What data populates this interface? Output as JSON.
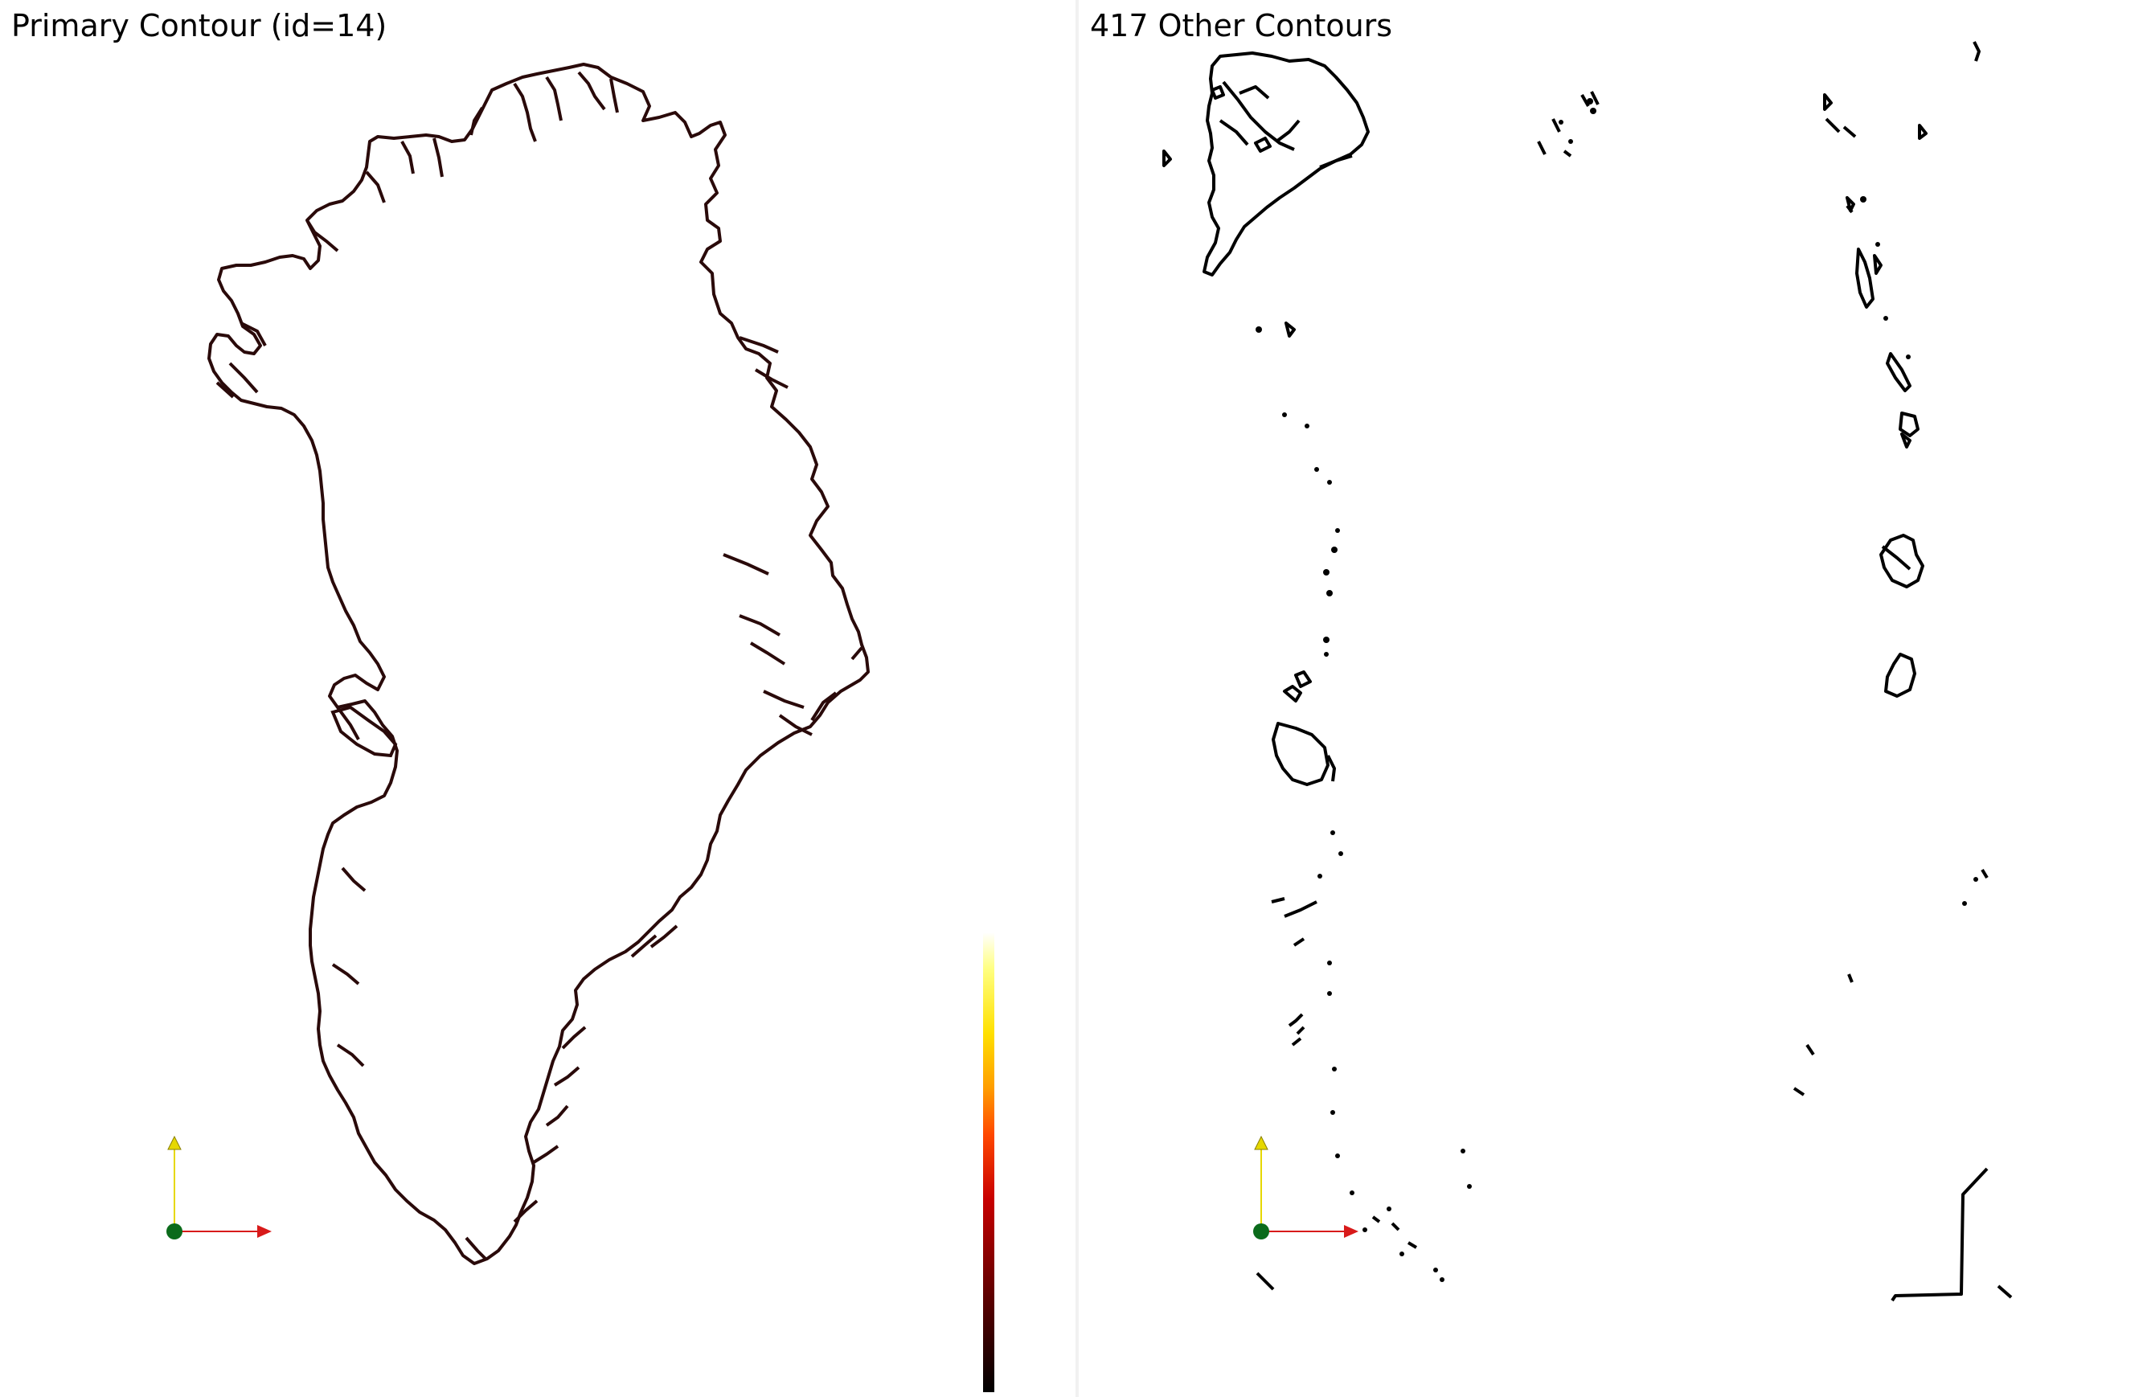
{
  "left_view": {
    "title": "Primary Contour (id=14)"
  },
  "right_view": {
    "title": "417 Other Contours"
  },
  "colors": {
    "contour": "#2a0a0a",
    "other_contours": "#000000",
    "axis_x": "#d81a1a",
    "axis_y": "#e6d800",
    "axis_origin": "#0b6b1b",
    "colorbar_stops": [
      "#000000",
      "#5a0000",
      "#c80000",
      "#ff4800",
      "#ff9c00",
      "#ffe000",
      "#ffff80",
      "#ffffff"
    ]
  },
  "icons": {
    "orientation_axes": "orientation-axes-icon"
  }
}
